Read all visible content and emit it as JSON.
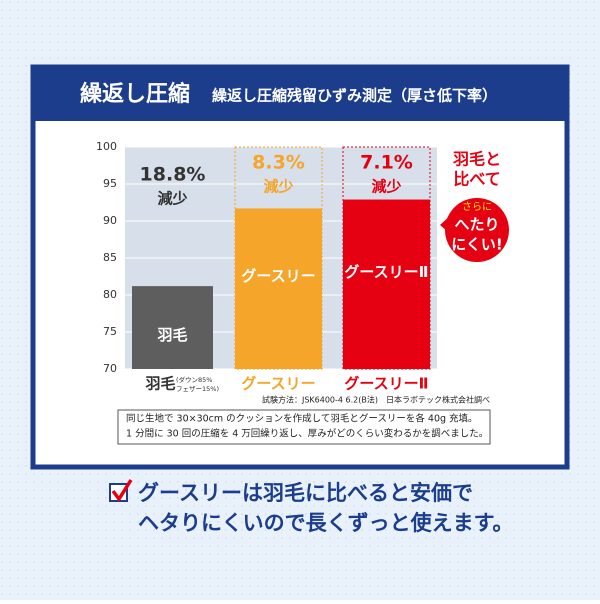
{
  "chart_data": {
    "type": "bar",
    "title": "繰返し圧縮",
    "subtitle": "繰返し圧縮残留ひずみ測定（厚さ低下率）",
    "categories": [
      "羽毛",
      "グースリー",
      "グースリーⅡ"
    ],
    "category_notes": [
      "(ダウン85%",
      "フェザー15%)"
    ],
    "values": [
      81.2,
      91.7,
      92.9
    ],
    "colors": [
      "#5e5e5e",
      "#f4a52a",
      "#e50012"
    ],
    "label_colors": [
      "#333333",
      "#f4a52a",
      "#e50012"
    ],
    "bar_labels": [
      "羽毛",
      "グースリー",
      "グースリーⅡ"
    ],
    "reduction_labels": [
      "18.8%",
      "8.3%",
      "7.1%"
    ],
    "reduction_text": "減少",
    "ylim": [
      70,
      100
    ],
    "yticks": [
      70,
      75,
      80,
      85,
      90,
      95,
      100
    ],
    "grid": true,
    "callout": [
      "羽毛と",
      "比べて"
    ],
    "bubble": [
      "さらに",
      "へたり",
      "にくい!"
    ],
    "source": "試験方法：JSK6400-4 6.2(B法)　日本ラボテック株式会社調べ",
    "note": [
      "同じ生地で 30×30cm のクッションを作成して羽毛とグースリーを各 40g 充填。",
      "1 分間に 30 回の圧縮を 4 万回繰り返し、厚みがどのくらい変わるかを調べました。"
    ]
  },
  "footer": {
    "lines": [
      "グースリーは羽毛に比べると安価で",
      "ヘタりにくいので長くずっと使えます。"
    ]
  }
}
